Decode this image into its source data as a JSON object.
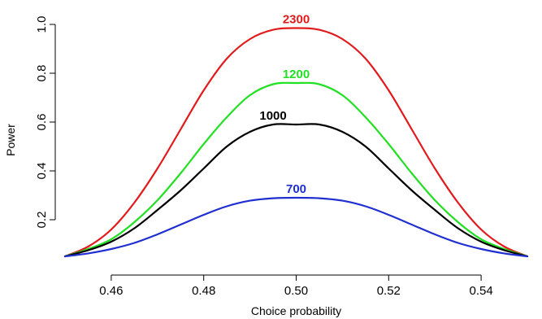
{
  "chart_data": {
    "type": "line",
    "title": "",
    "xlabel": "Choice probability",
    "ylabel": "Power",
    "xlim": [
      0.45,
      0.55
    ],
    "ylim": [
      0.0,
      1.0
    ],
    "x_ticks": [
      0.46,
      0.48,
      0.5,
      0.52,
      0.54
    ],
    "x_tick_labels": [
      "0.46",
      "0.48",
      "0.50",
      "0.52",
      "0.54"
    ],
    "y_ticks": [
      0.2,
      0.4,
      0.6,
      0.8,
      1.0
    ],
    "y_tick_labels": [
      "0.2",
      "0.4",
      "0.6",
      "0.8",
      "1.0"
    ],
    "grid": false,
    "x": [
      0.45,
      0.455,
      0.46,
      0.465,
      0.47,
      0.475,
      0.48,
      0.485,
      0.49,
      0.495,
      0.5,
      0.505,
      0.51,
      0.515,
      0.52,
      0.525,
      0.53,
      0.535,
      0.54,
      0.545,
      0.55
    ],
    "series": [
      {
        "name": "2300",
        "color": "#e31a1c",
        "values": [
          0.05,
          0.09,
          0.16,
          0.27,
          0.41,
          0.57,
          0.73,
          0.86,
          0.94,
          0.978,
          0.985,
          0.978,
          0.94,
          0.86,
          0.73,
          0.57,
          0.41,
          0.27,
          0.16,
          0.09,
          0.05
        ]
      },
      {
        "name": "1200",
        "color": "#22e022",
        "values": [
          0.05,
          0.08,
          0.12,
          0.19,
          0.28,
          0.39,
          0.51,
          0.62,
          0.71,
          0.755,
          0.76,
          0.755,
          0.71,
          0.62,
          0.51,
          0.39,
          0.28,
          0.19,
          0.12,
          0.08,
          0.05
        ]
      },
      {
        "name": "1000",
        "color": "#000000",
        "values": [
          0.05,
          0.075,
          0.11,
          0.165,
          0.24,
          0.32,
          0.41,
          0.5,
          0.56,
          0.59,
          0.59,
          0.59,
          0.56,
          0.5,
          0.41,
          0.32,
          0.24,
          0.165,
          0.11,
          0.075,
          0.05
        ]
      },
      {
        "name": "700",
        "color": "#1f2fd0",
        "values": [
          0.05,
          0.062,
          0.08,
          0.105,
          0.14,
          0.18,
          0.22,
          0.255,
          0.278,
          0.288,
          0.29,
          0.288,
          0.278,
          0.255,
          0.22,
          0.18,
          0.14,
          0.105,
          0.08,
          0.062,
          0.05
        ]
      }
    ],
    "annotations": [
      {
        "series": "2300",
        "text": "2300"
      },
      {
        "series": "1200",
        "text": "1200"
      },
      {
        "series": "1000",
        "text": "1000"
      },
      {
        "series": "700",
        "text": "700"
      }
    ]
  }
}
